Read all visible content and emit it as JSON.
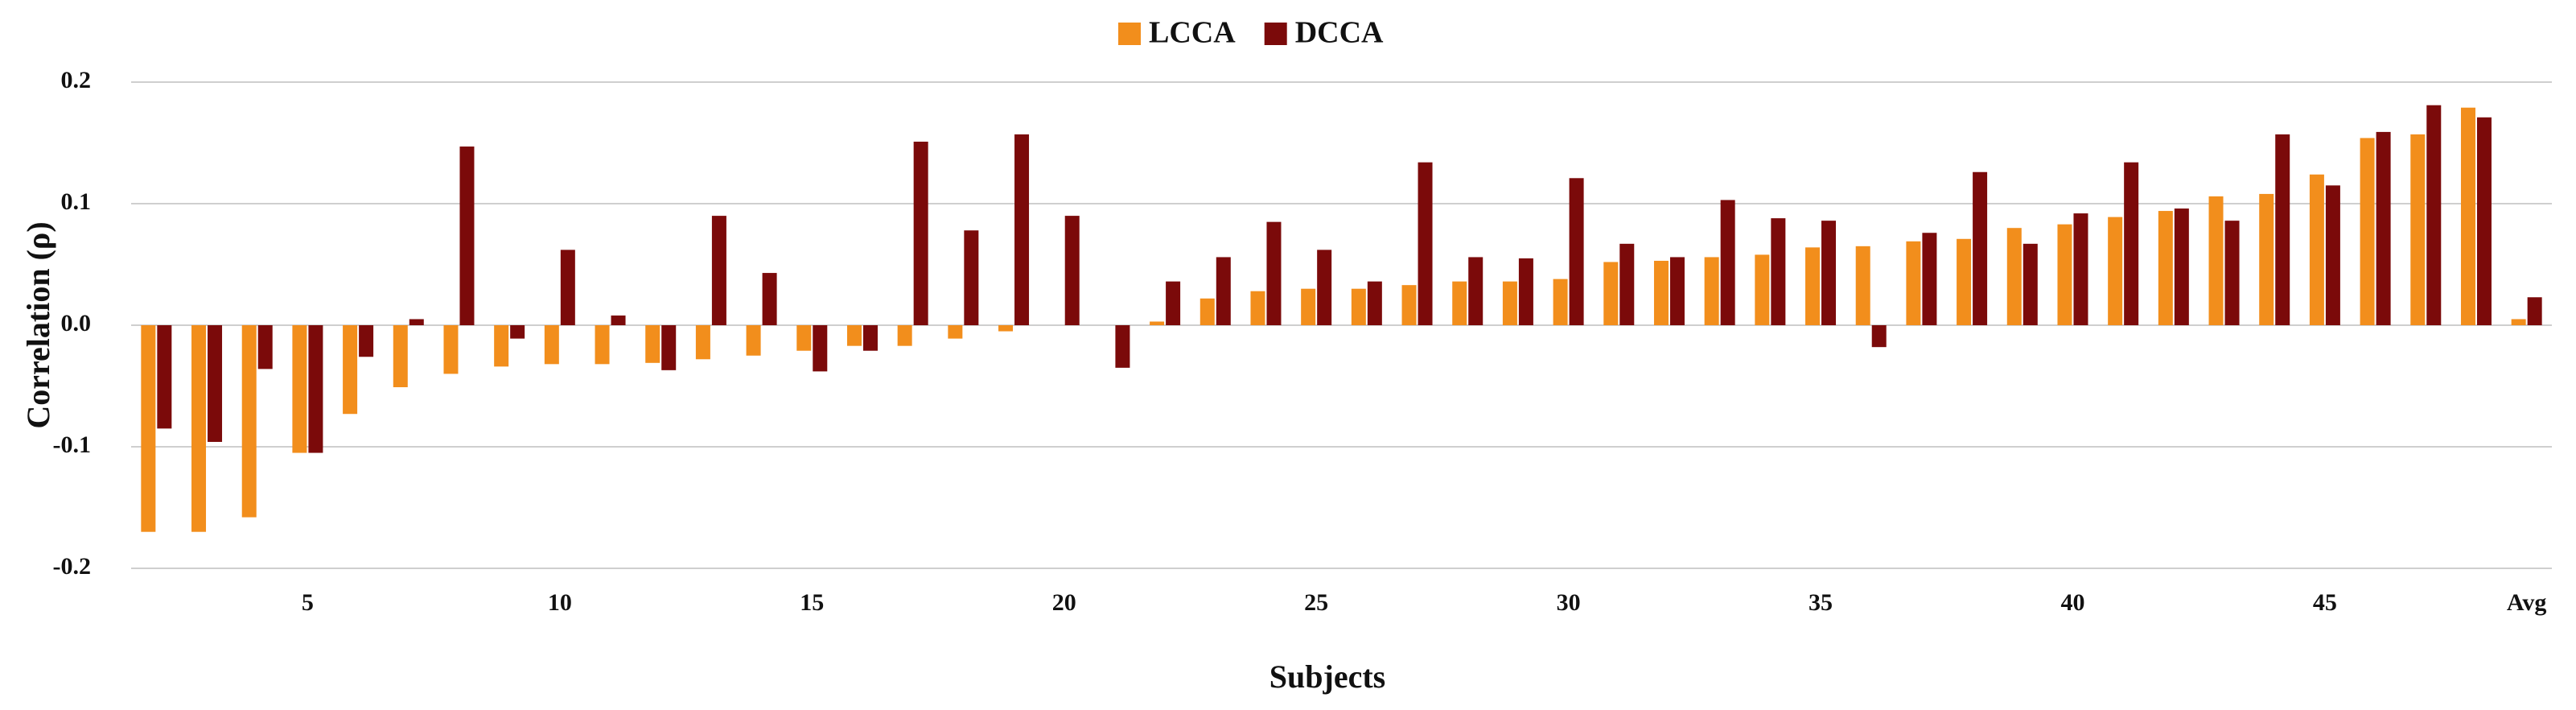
{
  "chart_data": {
    "type": "bar",
    "xlabel": "Subjects",
    "ylabel": "Correlation (ρ)",
    "categories": [
      null,
      null,
      null,
      "5",
      null,
      null,
      null,
      null,
      "10",
      null,
      null,
      null,
      null,
      "15",
      null,
      null,
      null,
      null,
      "20",
      null,
      null,
      null,
      null,
      "25",
      null,
      null,
      null,
      null,
      "30",
      null,
      null,
      null,
      null,
      "35",
      null,
      null,
      null,
      null,
      "40",
      null,
      null,
      null,
      null,
      "45",
      null,
      null,
      null,
      "Avg"
    ],
    "series": [
      {
        "name": "LCCA",
        "color": "#F28E1C",
        "values": [
          -0.17,
          -0.17,
          -0.158,
          -0.105,
          -0.073,
          -0.051,
          -0.04,
          -0.034,
          -0.032,
          -0.032,
          -0.031,
          -0.028,
          -0.025,
          -0.021,
          -0.017,
          -0.017,
          -0.011,
          -0.005,
          0,
          0,
          0.003,
          0.022,
          0.028,
          0.03,
          0.03,
          0.033,
          0.036,
          0.036,
          0.038,
          0.052,
          0.053,
          0.056,
          0.058,
          0.064,
          0.065,
          0.069,
          0.071,
          0.08,
          0.083,
          0.089,
          0.094,
          0.106,
          0.108,
          0.124,
          0.154,
          0.157,
          0.179,
          0.005
        ]
      },
      {
        "name": "DCCA",
        "color": "#7B0A0A",
        "values": [
          -0.085,
          -0.096,
          -0.036,
          -0.105,
          -0.026,
          0.005,
          0.147,
          -0.011,
          0.062,
          0.008,
          -0.037,
          0.09,
          0.043,
          -0.038,
          -0.021,
          0.151,
          0.078,
          0.157,
          0.09,
          -0.035,
          0.036,
          0.056,
          0.085,
          0.062,
          0.036,
          0.134,
          0.056,
          0.055,
          0.121,
          0.067,
          0.056,
          0.103,
          0.088,
          0.086,
          -0.018,
          0.076,
          0.126,
          0.067,
          0.092,
          0.134,
          0.096,
          0.086,
          0.157,
          0.115,
          0.159,
          0.181,
          0.171,
          0.023
        ]
      }
    ],
    "ylim": [
      -0.2,
      0.2
    ],
    "yticks": [
      -0.2,
      -0.1,
      {
        "value": 0,
        "label": "0.0"
      },
      0.1,
      0.2
    ],
    "grid": true,
    "legend": "top"
  }
}
